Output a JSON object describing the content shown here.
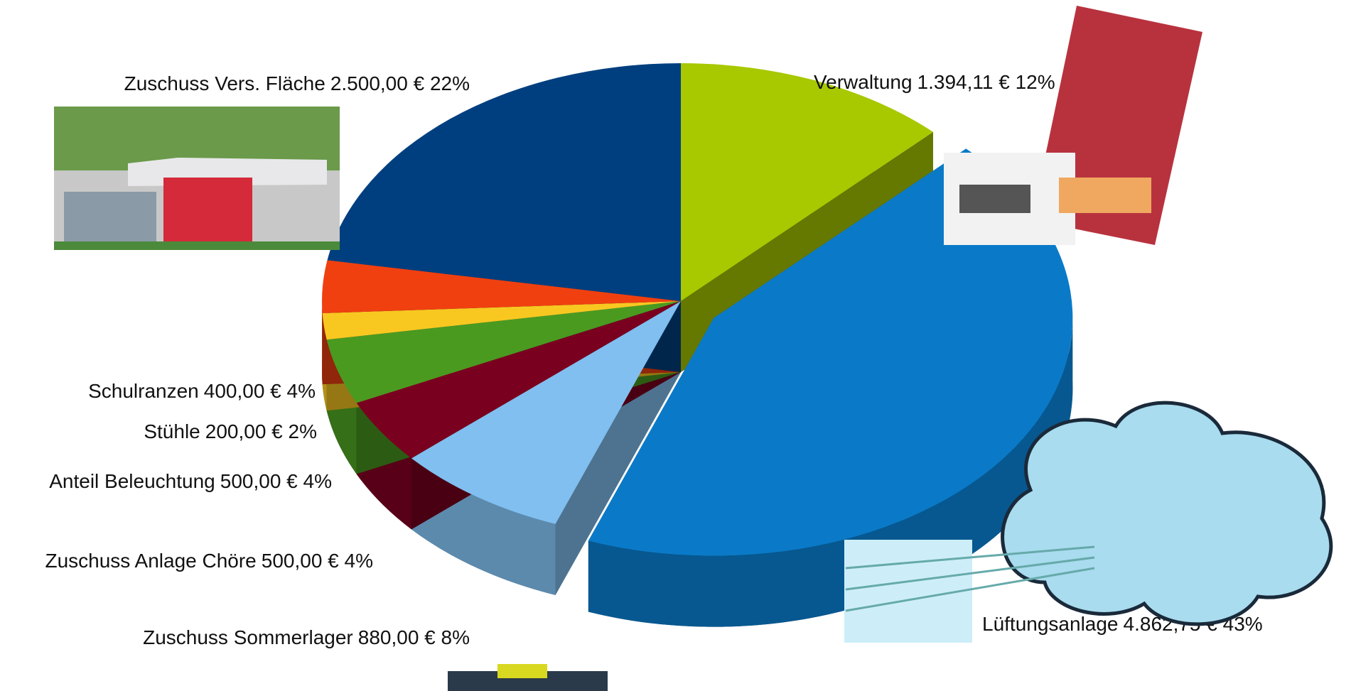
{
  "chart_data": {
    "type": "pie3d",
    "categories": [
      "Verwaltung",
      "Lüftungsanlage",
      "Zuschuss Sommerlager",
      "Zuschuss Anlage Chöre",
      "Anteil Beleuchtung",
      "Stühle",
      "Schulranzen",
      "Zuschuss Vers. Fläche"
    ],
    "values": [
      1394.11,
      4862.75,
      880,
      500,
      500,
      200,
      400,
      2500
    ],
    "value_labels": [
      "1.394,11 € 12%",
      "4.862,75 € 43%",
      "880,00 € 8%",
      "500,00 € 4%",
      "500,00 € 4%",
      "200,00 € 2%",
      "400,00 € 4%",
      "2.500,00 € 22%"
    ],
    "colors": [
      "#a8c800",
      "#0a7ac8",
      "#80bff0",
      "#7a0020",
      "#4a9a20",
      "#f8c820",
      "#f04010",
      "#003f7f"
    ],
    "exploded": [
      1
    ]
  }
}
